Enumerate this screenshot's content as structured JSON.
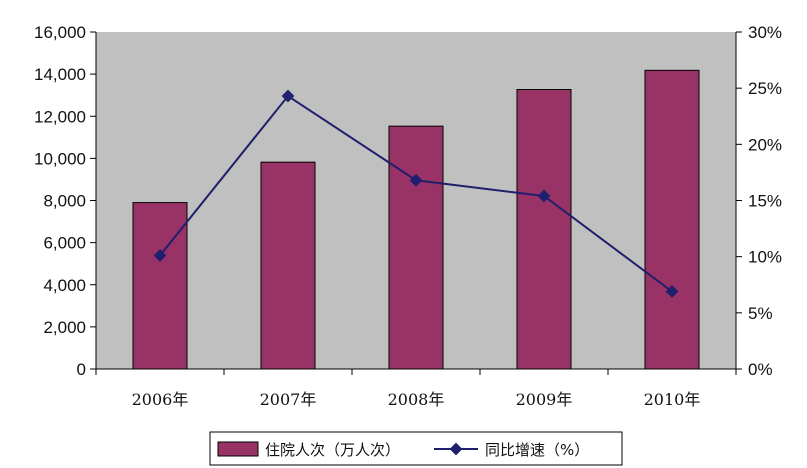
{
  "colors": {
    "plot_background": "#c0c0c0",
    "bar": "#993366",
    "line": "#1f1f6e",
    "axis": "#000000"
  },
  "chart_data": {
    "type": "bar",
    "title": "",
    "xlabel": "",
    "ylabel": "",
    "categories": [
      "2006年",
      "2007年",
      "2008年",
      "2009年",
      "2010年"
    ],
    "ylim": [
      0,
      16000
    ],
    "y_ticks": [
      "0",
      "2,000",
      "4,000",
      "6,000",
      "8,000",
      "10,000",
      "12,000",
      "14,000",
      "16,000"
    ],
    "y2lim": [
      0,
      30
    ],
    "y2_ticks": [
      "0%",
      "5%",
      "10%",
      "15%",
      "20%",
      "25%",
      "30%"
    ],
    "grid": false,
    "legend_position": "bottom",
    "series": [
      {
        "name": "住院人次（万人次）",
        "type": "bar",
        "axis": "left",
        "values": [
          7900,
          9820,
          11530,
          13270,
          14180
        ]
      },
      {
        "name": "同比增速（%）",
        "type": "line",
        "marker": "diamond",
        "axis": "right",
        "values": [
          10.1,
          24.3,
          16.8,
          15.4,
          6.9
        ]
      }
    ]
  }
}
